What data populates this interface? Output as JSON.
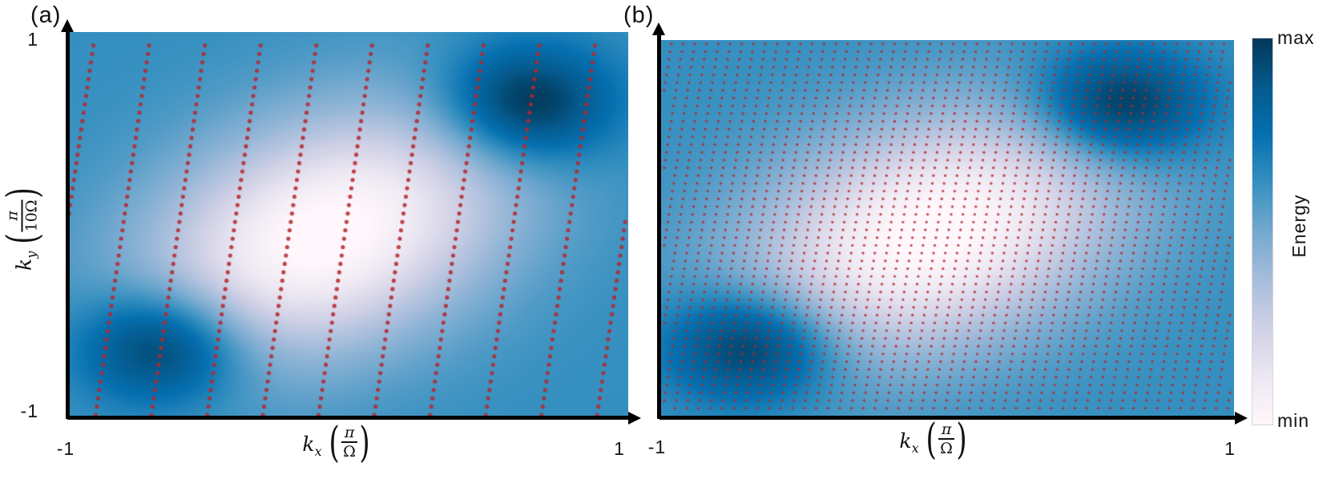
{
  "figure": {
    "background": "#ffffff"
  },
  "panels": [
    {
      "label": "(a)",
      "x_axis": {
        "ticks": [
          "-1",
          "1"
        ],
        "label": {
          "var": "k",
          "sub": "x",
          "num": "π",
          "den": "Ω"
        }
      },
      "y_axis": {
        "ticks": [
          "1",
          "-1"
        ],
        "label": {
          "var": "k",
          "sub": "y",
          "num": "π",
          "den": "10Ω"
        }
      }
    },
    {
      "label": "(b)",
      "x_axis": {
        "ticks": [
          "-1",
          "1"
        ],
        "label": {
          "var": "k",
          "sub": "x",
          "num": "π",
          "den": "Ω"
        }
      },
      "y_axis": {
        "ticks": [],
        "label": null
      }
    }
  ],
  "colorbar": {
    "max_label": "max",
    "min_label": "min",
    "title": "Energy",
    "gradient_stops_top_to_bottom": [
      "#023858",
      "#045a8d",
      "#0570b0",
      "#3690c0",
      "#74a9cf",
      "#a6bddb",
      "#d0d1e6",
      "#ece7f2",
      "#fff7fb"
    ]
  },
  "chart_data": [
    {
      "type": "heatmap",
      "panel": "a",
      "title": "",
      "xlabel": "k_x (π/Ω)",
      "ylabel": "k_y (π/10Ω)",
      "x_range": [
        -1,
        1
      ],
      "y_range": [
        -1,
        1
      ],
      "colorbar_title": "Energy",
      "colorbar_ticks": [
        "min",
        "max"
      ],
      "colormap": {
        "stops_min_to_max": [
          "#fff7fb",
          "#ece7f2",
          "#d0d1e6",
          "#a6bddb",
          "#74a9cf",
          "#3690c0",
          "#0570b0",
          "#045a8d",
          "#023858"
        ]
      },
      "energy_model": {
        "base": 0.63,
        "maxima": [
          {
            "x": 0.64,
            "y": 0.63,
            "amp": 0.45,
            "sigma": 0.21
          },
          {
            "x": -0.66,
            "y": -0.63,
            "amp": 0.45,
            "sigma": 0.21
          }
        ],
        "valley": {
          "cx": -0.08,
          "cy": -0.05,
          "depth": 0.66,
          "sigma_major": 0.52,
          "sigma_minor": 0.37,
          "orientation_deg": 45
        }
      },
      "overlay": {
        "type": "dotted-trajectory-lines",
        "color": "#b4282d",
        "alpha": 0.85,
        "dot_radius_px": 2.6,
        "n_lines": 11,
        "x_top_start": -0.9,
        "line_spacing_x": 0.199,
        "slope_dx_dy": 0.0995,
        "dot_spacing_y": 0.0436,
        "y_dot_start": 0.93
      }
    },
    {
      "type": "heatmap",
      "panel": "b",
      "title": "",
      "xlabel": "k_x (π/Ω)",
      "ylabel": "",
      "x_range": [
        -1,
        1
      ],
      "y_range": [
        -1,
        1
      ],
      "colorbar_title": "Energy",
      "colorbar_ticks": [
        "min",
        "max"
      ],
      "colormap": {
        "stops_min_to_max": [
          "#fff7fb",
          "#ece7f2",
          "#d0d1e6",
          "#a6bddb",
          "#74a9cf",
          "#3690c0",
          "#0570b0",
          "#045a8d",
          "#023858"
        ]
      },
      "energy_model": {
        "base": 0.63,
        "maxima": [
          {
            "x": 0.6,
            "y": 0.65,
            "amp": 0.45,
            "sigma": 0.21
          },
          {
            "x": -0.68,
            "y": -0.62,
            "amp": 0.45,
            "sigma": 0.21
          }
        ],
        "valley": {
          "cx": -0.05,
          "cy": -0.02,
          "depth": 0.66,
          "sigma_major": 0.52,
          "sigma_minor": 0.37,
          "orientation_deg": 45
        }
      },
      "overlay": {
        "type": "dot-grid",
        "color": "#b4282d",
        "alpha": 0.8,
        "dot_radius_px": 1.7,
        "x_start": -0.98,
        "y_start": 0.98,
        "dx": 0.0411,
        "dy": 0.0411,
        "shear_dx_dy": 0.0995
      }
    }
  ]
}
